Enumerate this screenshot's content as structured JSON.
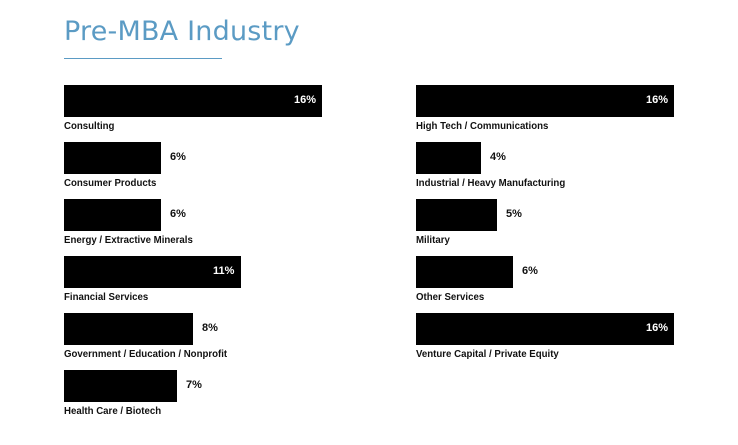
{
  "chart_data": {
    "type": "bar",
    "orientation": "horizontal",
    "title": "Pre-MBA Industry",
    "unit": "%",
    "xlim": [
      0,
      16
    ],
    "groups": [
      {
        "categories": [
          "Consulting",
          "Consumer Products",
          "Energy / Extractive Minerals",
          "Financial Services",
          "Government / Education / Nonprofit",
          "Health Care / Biotech"
        ],
        "values": [
          16,
          6,
          6,
          11,
          8,
          7
        ],
        "labels": [
          "16%",
          "6%",
          "6%",
          "11%",
          "8%",
          "7%"
        ]
      },
      {
        "categories": [
          "High Tech / Communications",
          "Industrial / Heavy Manufacturing",
          "Military",
          "Other Services",
          "Venture Capital / Private Equity"
        ],
        "values": [
          16,
          4,
          5,
          6,
          16
        ],
        "labels": [
          "16%",
          "4%",
          "5%",
          "6%",
          "16%"
        ]
      }
    ],
    "colors": {
      "title": "#5b9bc4",
      "bar": "#000000"
    }
  }
}
